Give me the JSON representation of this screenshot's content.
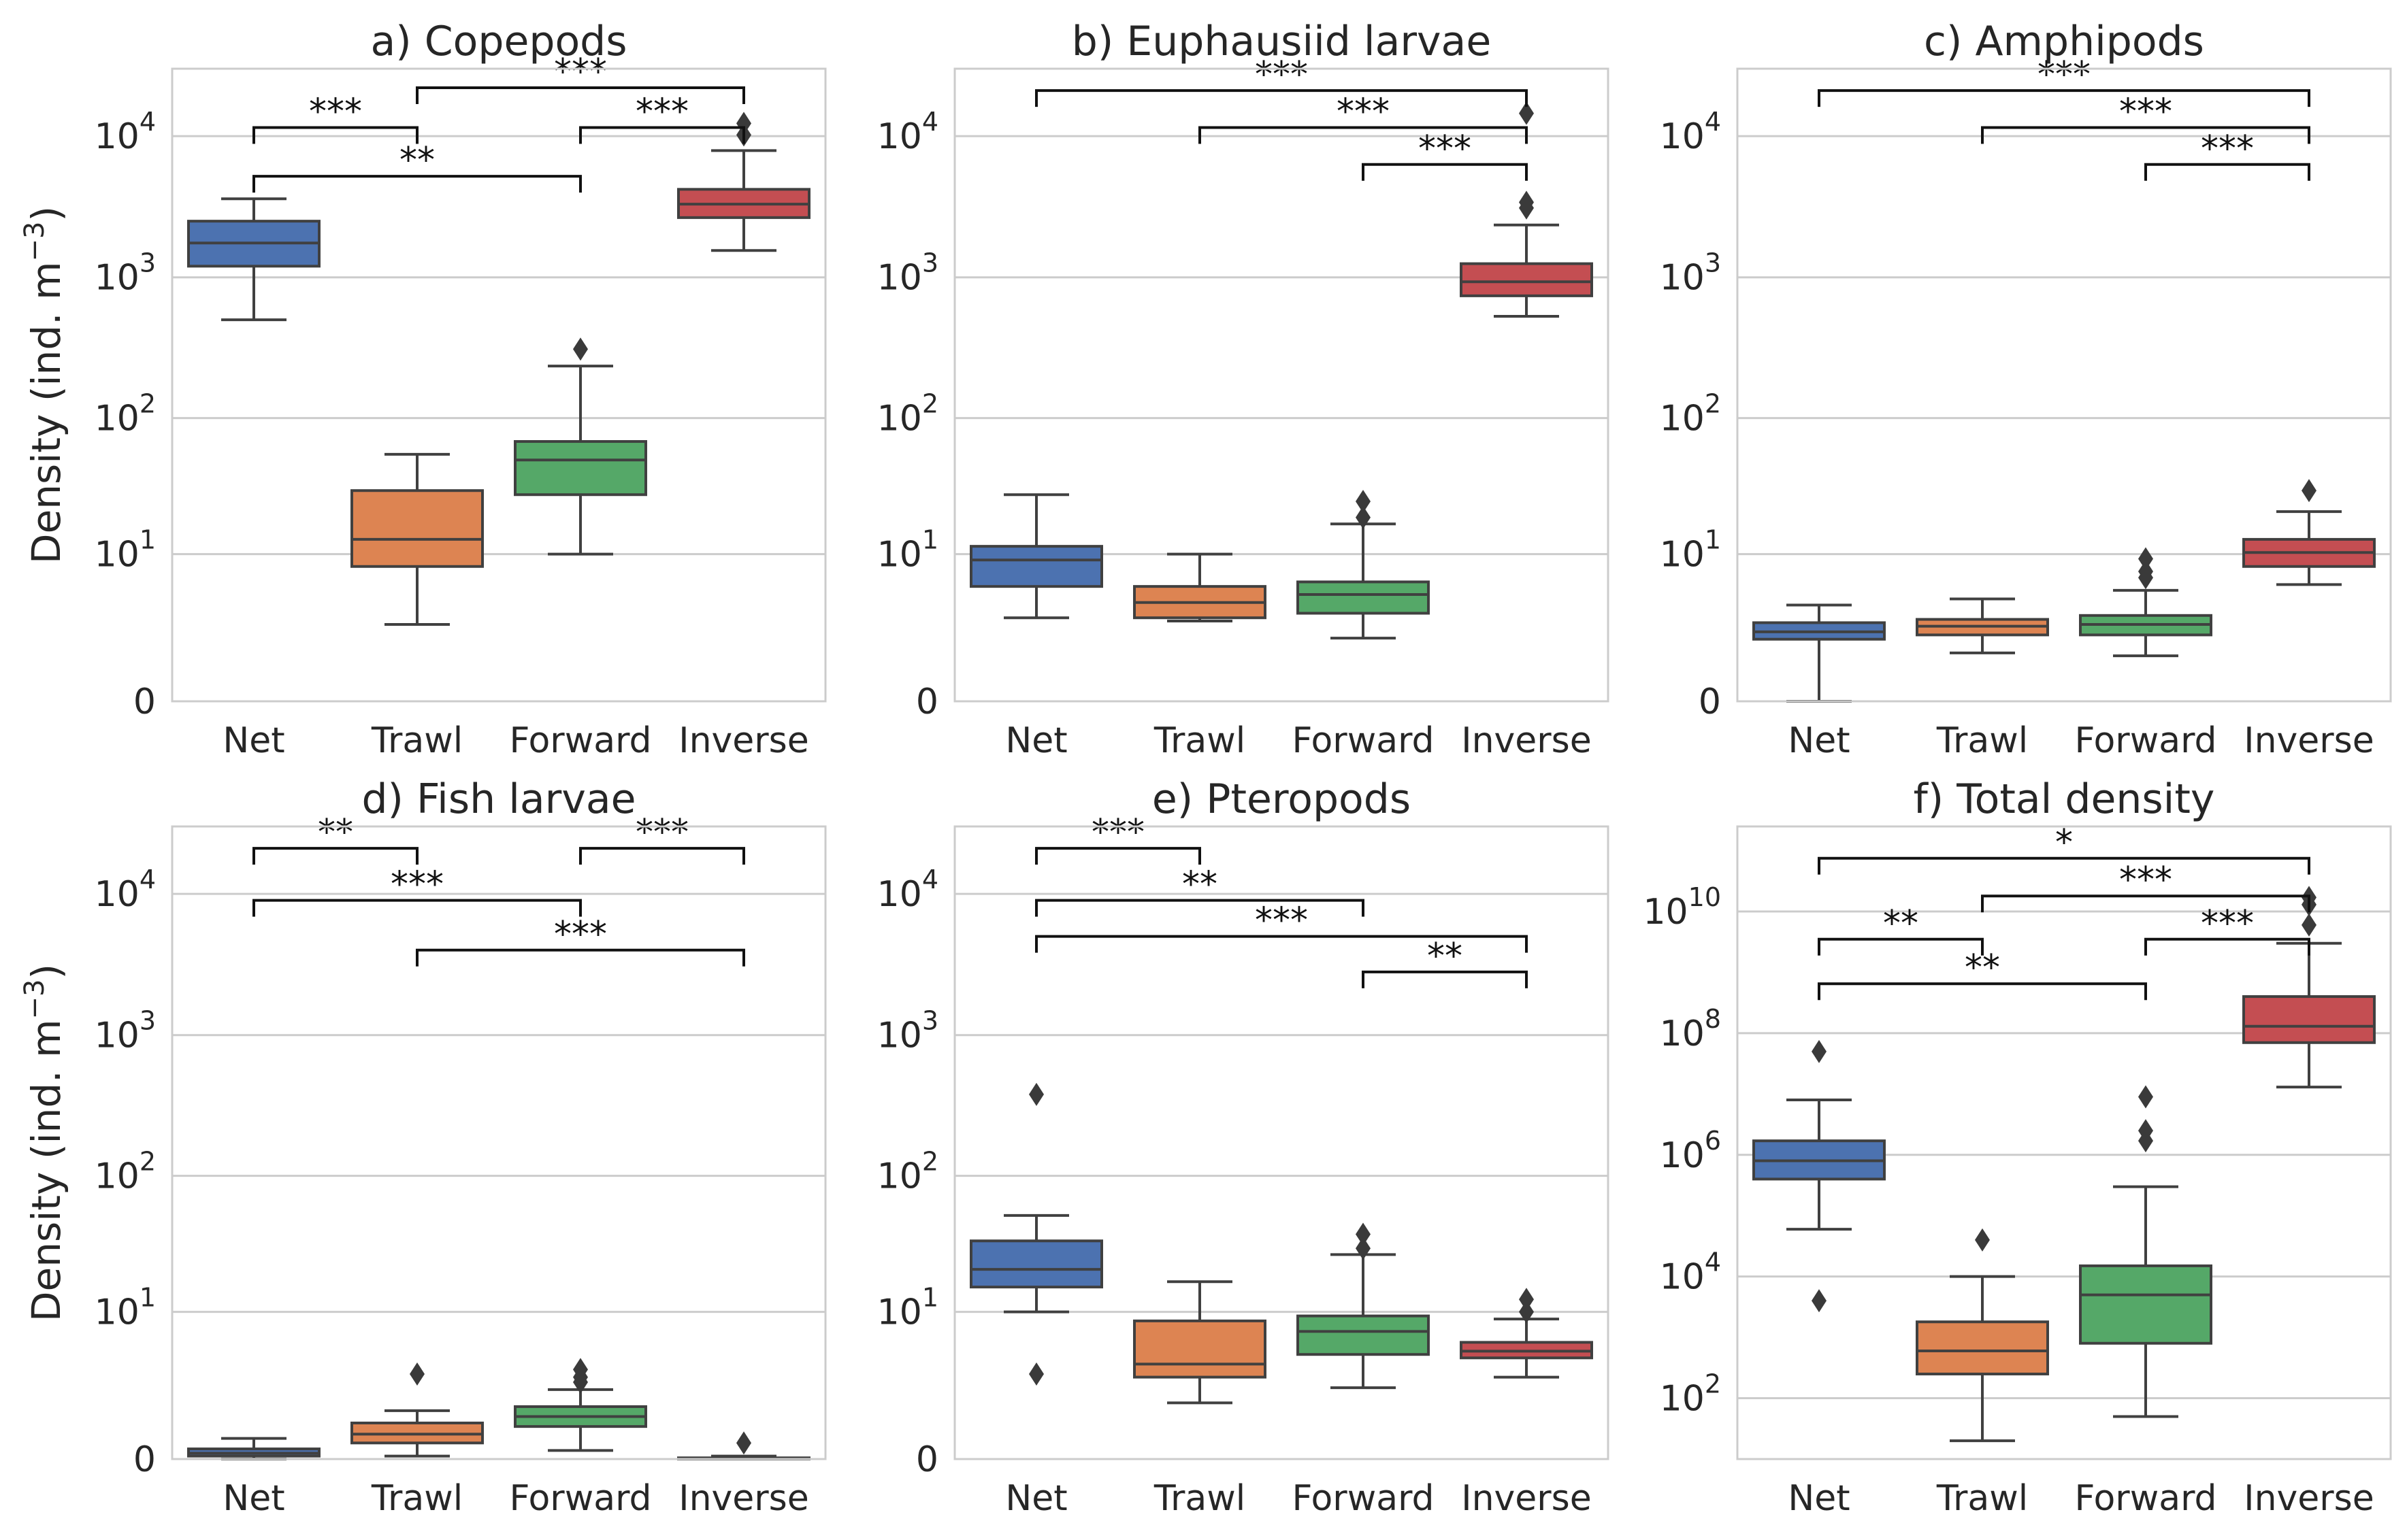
{
  "figure": {
    "ylabel": "Density (ind. m",
    "ylabel_sup": "−3",
    "ylabel_close": ")",
    "colors": {
      "Net": "#4c72b0",
      "Trawl": "#dd8452",
      "Forward": "#55a868",
      "Inverse": "#c44e52"
    },
    "edge_color": "#404040"
  },
  "chart_data": [
    {
      "type": "box",
      "title": "a) Copepods",
      "categories": [
        "Net",
        "Trawl",
        "Forward",
        "Inverse"
      ],
      "yscale": "symlog",
      "ylim": [
        0,
        30000
      ],
      "yticks": [
        {
          "v": 0,
          "b": "0"
        },
        {
          "v": 10,
          "b": "10",
          "e": "1"
        },
        {
          "v": 100,
          "b": "10",
          "e": "2"
        },
        {
          "v": 1000,
          "b": "10",
          "e": "3"
        },
        {
          "v": 10000,
          "b": "10",
          "e": "4"
        }
      ],
      "boxes": [
        {
          "cat": "Net",
          "whislo": 500,
          "q1": 1200,
          "med": 1750,
          "q3": 2500,
          "whishi": 3600,
          "fliers": []
        },
        {
          "cat": "Trawl",
          "whislo": 2.5,
          "q1": 8,
          "med": 13,
          "q3": 30,
          "whishi": 55,
          "fliers": []
        },
        {
          "cat": "Forward",
          "whislo": 10,
          "q1": 28,
          "med": 50,
          "q3": 68,
          "whishi": 235,
          "fliers": [
            310
          ]
        },
        {
          "cat": "Inverse",
          "whislo": 1550,
          "q1": 2650,
          "med": 3300,
          "q3": 4200,
          "whishi": 7900,
          "fliers": [
            10200,
            12300
          ]
        }
      ],
      "significance": [
        {
          "from": "Net",
          "to": "Trawl",
          "label": "***",
          "y": 11500
        },
        {
          "from": "Trawl",
          "to": "Inverse",
          "label": "***",
          "y": 22000
        },
        {
          "from": "Forward",
          "to": "Inverse",
          "label": "***",
          "y": 11500
        },
        {
          "from": "Net",
          "to": "Forward",
          "label": "**",
          "y": 5200
        }
      ]
    },
    {
      "type": "box",
      "title": "b) Euphausiid larvae",
      "categories": [
        "Net",
        "Trawl",
        "Forward",
        "Inverse"
      ],
      "yscale": "symlog",
      "ylim": [
        0,
        30000
      ],
      "yticks": [
        {
          "v": 0,
          "b": "0"
        },
        {
          "v": 10,
          "b": "10",
          "e": "1"
        },
        {
          "v": 100,
          "b": "10",
          "e": "2"
        },
        {
          "v": 1000,
          "b": "10",
          "e": "3"
        },
        {
          "v": 10000,
          "b": "10",
          "e": "4"
        }
      ],
      "boxes": [
        {
          "cat": "Net",
          "whislo": 2.9,
          "q1": 5.5,
          "med": 9,
          "q3": 11.5,
          "whishi": 28,
          "fliers": []
        },
        {
          "cat": "Trawl",
          "whislo": 2.7,
          "q1": 2.9,
          "med": 4,
          "q3": 5.5,
          "whishi": 10,
          "fliers": []
        },
        {
          "cat": "Forward",
          "whislo": 1.8,
          "q1": 3.2,
          "med": 4.7,
          "q3": 6,
          "whishi": 17,
          "fliers": [
            19,
            25
          ]
        },
        {
          "cat": "Inverse",
          "whislo": 530,
          "q1": 740,
          "med": 930,
          "q3": 1250,
          "whishi": 2350,
          "fliers": [
            3100,
            3400,
            14500
          ]
        }
      ],
      "significance": [
        {
          "from": "Net",
          "to": "Inverse",
          "label": "***",
          "y": 21000
        },
        {
          "from": "Trawl",
          "to": "Inverse",
          "label": "***",
          "y": 11500
        },
        {
          "from": "Forward",
          "to": "Inverse",
          "label": "***",
          "y": 6300
        }
      ]
    },
    {
      "type": "box",
      "title": "c) Amphipods",
      "categories": [
        "Net",
        "Trawl",
        "Forward",
        "Inverse"
      ],
      "yscale": "symlog",
      "ylim": [
        0,
        30000
      ],
      "yticks": [
        {
          "v": 0,
          "b": "0"
        },
        {
          "v": 10,
          "b": "10",
          "e": "1"
        },
        {
          "v": 100,
          "b": "10",
          "e": "2"
        },
        {
          "v": 1000,
          "b": "10",
          "e": "3"
        },
        {
          "v": 10000,
          "b": "10",
          "e": "4"
        }
      ],
      "boxes": [
        {
          "cat": "Net",
          "whislo": 0,
          "q1": 1.75,
          "med": 2.1,
          "q3": 2.6,
          "whishi": 3.8,
          "fliers": []
        },
        {
          "cat": "Trawl",
          "whislo": 1.2,
          "q1": 1.95,
          "med": 2.4,
          "q3": 2.8,
          "whishi": 4.3,
          "fliers": []
        },
        {
          "cat": "Forward",
          "whislo": 1.1,
          "q1": 1.95,
          "med": 2.5,
          "q3": 3.05,
          "whishi": 5.1,
          "fliers": [
            6.5,
            7.3,
            9.2
          ]
        },
        {
          "cat": "Inverse",
          "whislo": 5.7,
          "q1": 8,
          "med": 10.3,
          "q3": 13,
          "whishi": 21,
          "fliers": [
            30
          ]
        }
      ],
      "significance": [
        {
          "from": "Net",
          "to": "Inverse",
          "label": "***",
          "y": 21000
        },
        {
          "from": "Trawl",
          "to": "Inverse",
          "label": "***",
          "y": 11500
        },
        {
          "from": "Forward",
          "to": "Inverse",
          "label": "***",
          "y": 6300
        }
      ]
    },
    {
      "type": "box",
      "title": "d) Fish larvae",
      "categories": [
        "Net",
        "Trawl",
        "Forward",
        "Inverse"
      ],
      "yscale": "symlog",
      "ylim": [
        0,
        30000
      ],
      "yticks": [
        {
          "v": 0,
          "b": "0"
        },
        {
          "v": 10,
          "b": "10",
          "e": "1"
        },
        {
          "v": 100,
          "b": "10",
          "e": "2"
        },
        {
          "v": 1000,
          "b": "10",
          "e": "3"
        },
        {
          "v": 10000,
          "b": "10",
          "e": "4"
        }
      ],
      "boxes": [
        {
          "cat": "Net",
          "whislo": 0,
          "q1": 0.05,
          "med": 0.1,
          "q3": 0.18,
          "whishi": 0.4,
          "fliers": []
        },
        {
          "cat": "Trawl",
          "whislo": 0.05,
          "q1": 0.3,
          "med": 0.5,
          "q3": 0.8,
          "whishi": 1.2,
          "fliers": [
            3
          ]
        },
        {
          "cat": "Forward",
          "whislo": 0.15,
          "q1": 0.7,
          "med": 1.0,
          "q3": 1.35,
          "whishi": 2.1,
          "fliers": [
            2.5,
            2.8,
            3.3
          ]
        },
        {
          "cat": "Inverse",
          "whislo": 0,
          "q1": 0,
          "med": 0,
          "q3": 0.02,
          "whishi": 0.05,
          "fliers": [
            0.3
          ]
        }
      ],
      "significance": [
        {
          "from": "Net",
          "to": "Trawl",
          "label": "**",
          "y": 21000
        },
        {
          "from": "Forward",
          "to": "Inverse",
          "label": "***",
          "y": 21000
        },
        {
          "from": "Net",
          "to": "Forward",
          "label": "***",
          "y": 9000
        },
        {
          "from": "Trawl",
          "to": "Inverse",
          "label": "***",
          "y": 4000
        }
      ]
    },
    {
      "type": "box",
      "title": "e) Pteropods",
      "categories": [
        "Net",
        "Trawl",
        "Forward",
        "Inverse"
      ],
      "yscale": "symlog",
      "ylim": [
        0,
        30000
      ],
      "yticks": [
        {
          "v": 0,
          "b": "0"
        },
        {
          "v": 10,
          "b": "10",
          "e": "1"
        },
        {
          "v": 100,
          "b": "10",
          "e": "2"
        },
        {
          "v": 1000,
          "b": "10",
          "e": "3"
        },
        {
          "v": 10000,
          "b": "10",
          "e": "4"
        }
      ],
      "boxes": [
        {
          "cat": "Net",
          "whislo": 10,
          "q1": 15.5,
          "med": 21,
          "q3": 34,
          "whishi": 52,
          "fliers": [
            3,
            380
          ]
        },
        {
          "cat": "Trawl",
          "whislo": 1.5,
          "q1": 2.8,
          "med": 3.7,
          "q3": 8.5,
          "whishi": 17,
          "fliers": []
        },
        {
          "cat": "Forward",
          "whislo": 2.2,
          "q1": 4.5,
          "med": 7,
          "q3": 9.3,
          "whishi": 27,
          "fliers": [
            30,
            38
          ]
        },
        {
          "cat": "Inverse",
          "whislo": 2.8,
          "q1": 4.2,
          "med": 4.8,
          "q3": 5.7,
          "whishi": 8.8,
          "fliers": [
            10,
            12.5
          ]
        }
      ],
      "significance": [
        {
          "from": "Net",
          "to": "Trawl",
          "label": "***",
          "y": 21000
        },
        {
          "from": "Net",
          "to": "Forward",
          "label": "**",
          "y": 9000
        },
        {
          "from": "Net",
          "to": "Inverse",
          "label": "***",
          "y": 5000
        },
        {
          "from": "Forward",
          "to": "Inverse",
          "label": "**",
          "y": 2800
        }
      ]
    },
    {
      "type": "box",
      "title": "f) Total density",
      "categories": [
        "Net",
        "Trawl",
        "Forward",
        "Inverse"
      ],
      "yscale": "log",
      "ylim": [
        10,
        250000000000.0
      ],
      "yticks": [
        {
          "v": 100,
          "b": "10",
          "e": "2"
        },
        {
          "v": 10000,
          "b": "10",
          "e": "4"
        },
        {
          "v": 1000000,
          "b": "10",
          "e": "6"
        },
        {
          "v": 100000000,
          "b": "10",
          "e": "8"
        },
        {
          "v": 10000000000,
          "b": "10",
          "e": "10"
        }
      ],
      "boxes": [
        {
          "cat": "Net",
          "whislo": 60000,
          "q1": 400000,
          "med": 800000,
          "q3": 1700000,
          "whishi": 8000000,
          "fliers": [
            4000,
            50000000
          ]
        },
        {
          "cat": "Trawl",
          "whislo": 20,
          "q1": 250,
          "med": 600,
          "q3": 1800,
          "whishi": 10000,
          "fliers": [
            40000
          ]
        },
        {
          "cat": "Forward",
          "whislo": 50,
          "q1": 800,
          "med": 5000,
          "q3": 15000,
          "whishi": 300000,
          "fliers": [
            1700000,
            2500000,
            9000000
          ]
        },
        {
          "cat": "Inverse",
          "whislo": 13000000,
          "q1": 70000000,
          "med": 130000000,
          "q3": 400000000,
          "whishi": 3000000000,
          "fliers": [
            6000000000,
            13000000000,
            17000000000
          ]
        }
      ],
      "significance": [
        {
          "from": "Net",
          "to": "Inverse",
          "label": "*",
          "y": 75000000000
        },
        {
          "from": "Trawl",
          "to": "Inverse",
          "label": "***",
          "y": 18000000000
        },
        {
          "from": "Net",
          "to": "Trawl",
          "label": "**",
          "y": 3500000000
        },
        {
          "from": "Forward",
          "to": "Inverse",
          "label": "***",
          "y": 3500000000
        },
        {
          "from": "Net",
          "to": "Forward",
          "label": "**",
          "y": 650000000
        }
      ]
    }
  ]
}
